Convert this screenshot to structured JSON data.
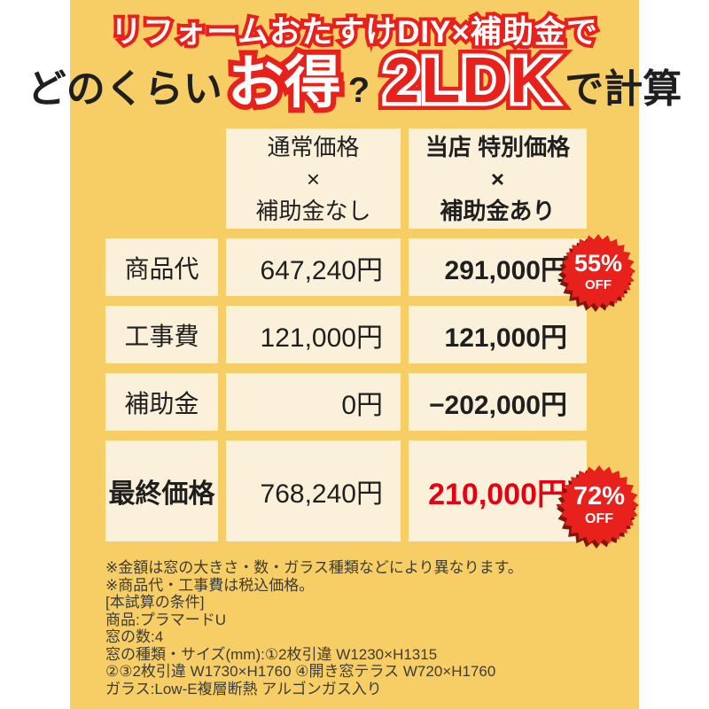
{
  "title": {
    "ribbon": "リフォームおたすけDIY×補助金で",
    "line2": {
      "prefix": "どのくらい",
      "highlight": "お得",
      "question": "?",
      "room": "2LDK",
      "suffix": "で計算"
    }
  },
  "table": {
    "header": {
      "normal": {
        "line1": "通常価格",
        "line2": "×",
        "line3": "補助金なし"
      },
      "special": {
        "line1": "当店 特別価格",
        "line2": "×",
        "line3": "補助金あり"
      }
    },
    "rows": [
      {
        "label": "商品代",
        "normal": "647,240円",
        "special": "291,000円"
      },
      {
        "label": "工事費",
        "normal": "121,000円",
        "special": "121,000円"
      },
      {
        "label": "補助金",
        "normal": "0円",
        "special": "−202,000円"
      },
      {
        "label": "最終価格",
        "normal": "768,240円",
        "special": "210,000円"
      }
    ],
    "badges": [
      {
        "percent": "55%",
        "label": "OFF"
      },
      {
        "percent": "72%",
        "label": "OFF"
      }
    ]
  },
  "notes": [
    "※金額は窓の大きさ・数・ガラス種類などにより異なります。",
    "※商品代・工事費は税込価格。",
    "[本試算の条件]",
    "商品:プラマードU",
    "窓の数:4",
    "窓の種類・サイズ(mm):①2枚引違 W1230×H1315",
    "②③2枚引違 W1730×H1760 ④開き窓テラス W720×H1760",
    "ガラス:Low-E複層断熱 アルゴンガス入り"
  ],
  "colors": {
    "bg_yellow": "#f7ce66",
    "cell_cream": "#fbf1da",
    "accent_red": "#e8211d",
    "price_red": "#e60012",
    "badge_red": "#e8211d",
    "badge_shadow": "#7e170e",
    "text_dark": "#1f1f1f",
    "note_text": "#3c3c34"
  }
}
